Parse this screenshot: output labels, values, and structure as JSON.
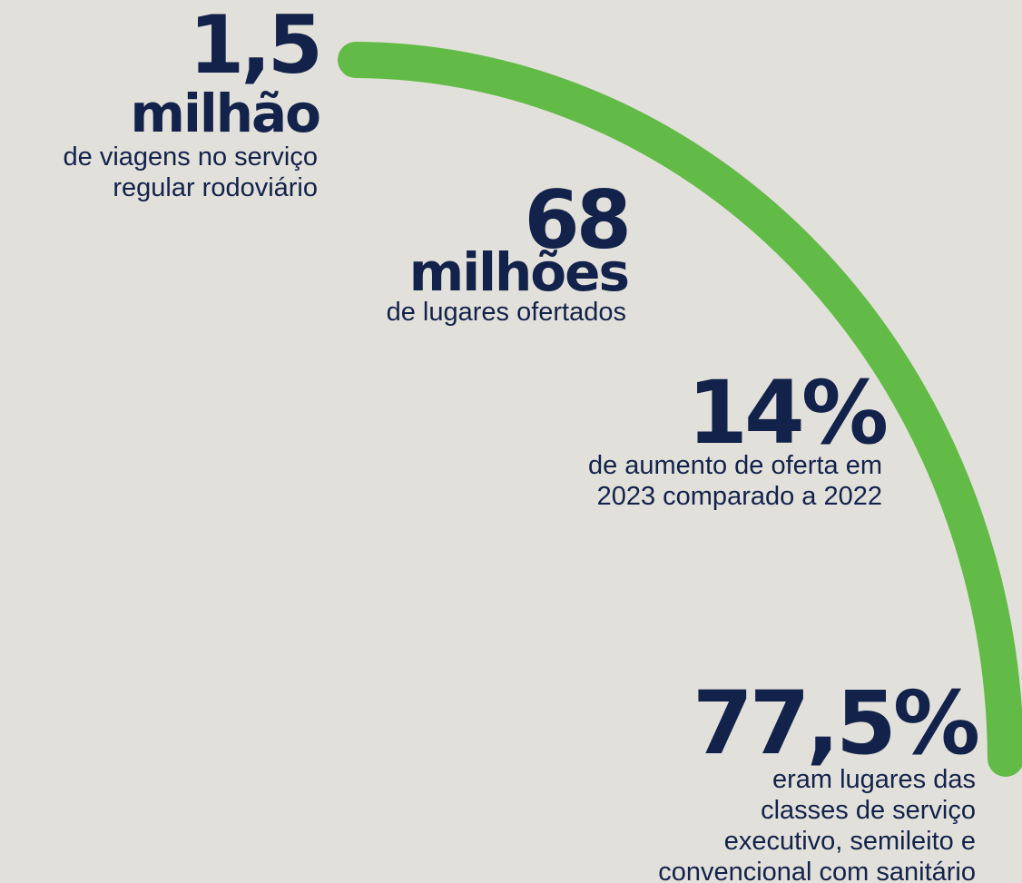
{
  "stats": [
    {
      "value": "1,5",
      "unit": "milhão",
      "lines": [
        "de viagens no serviço",
        "regular rodoviário"
      ]
    },
    {
      "value": "68",
      "unit": "milhões",
      "lines": [
        "de lugares ofertados"
      ]
    },
    {
      "value": "14%",
      "lines": [
        "de aumento de oferta em",
        "2023 comparado a 2022"
      ]
    },
    {
      "value": "77,5%",
      "lines": [
        "eram lugares das",
        "classes de serviço",
        "executivo, semileito e",
        "convencional com sanitário"
      ]
    }
  ]
}
